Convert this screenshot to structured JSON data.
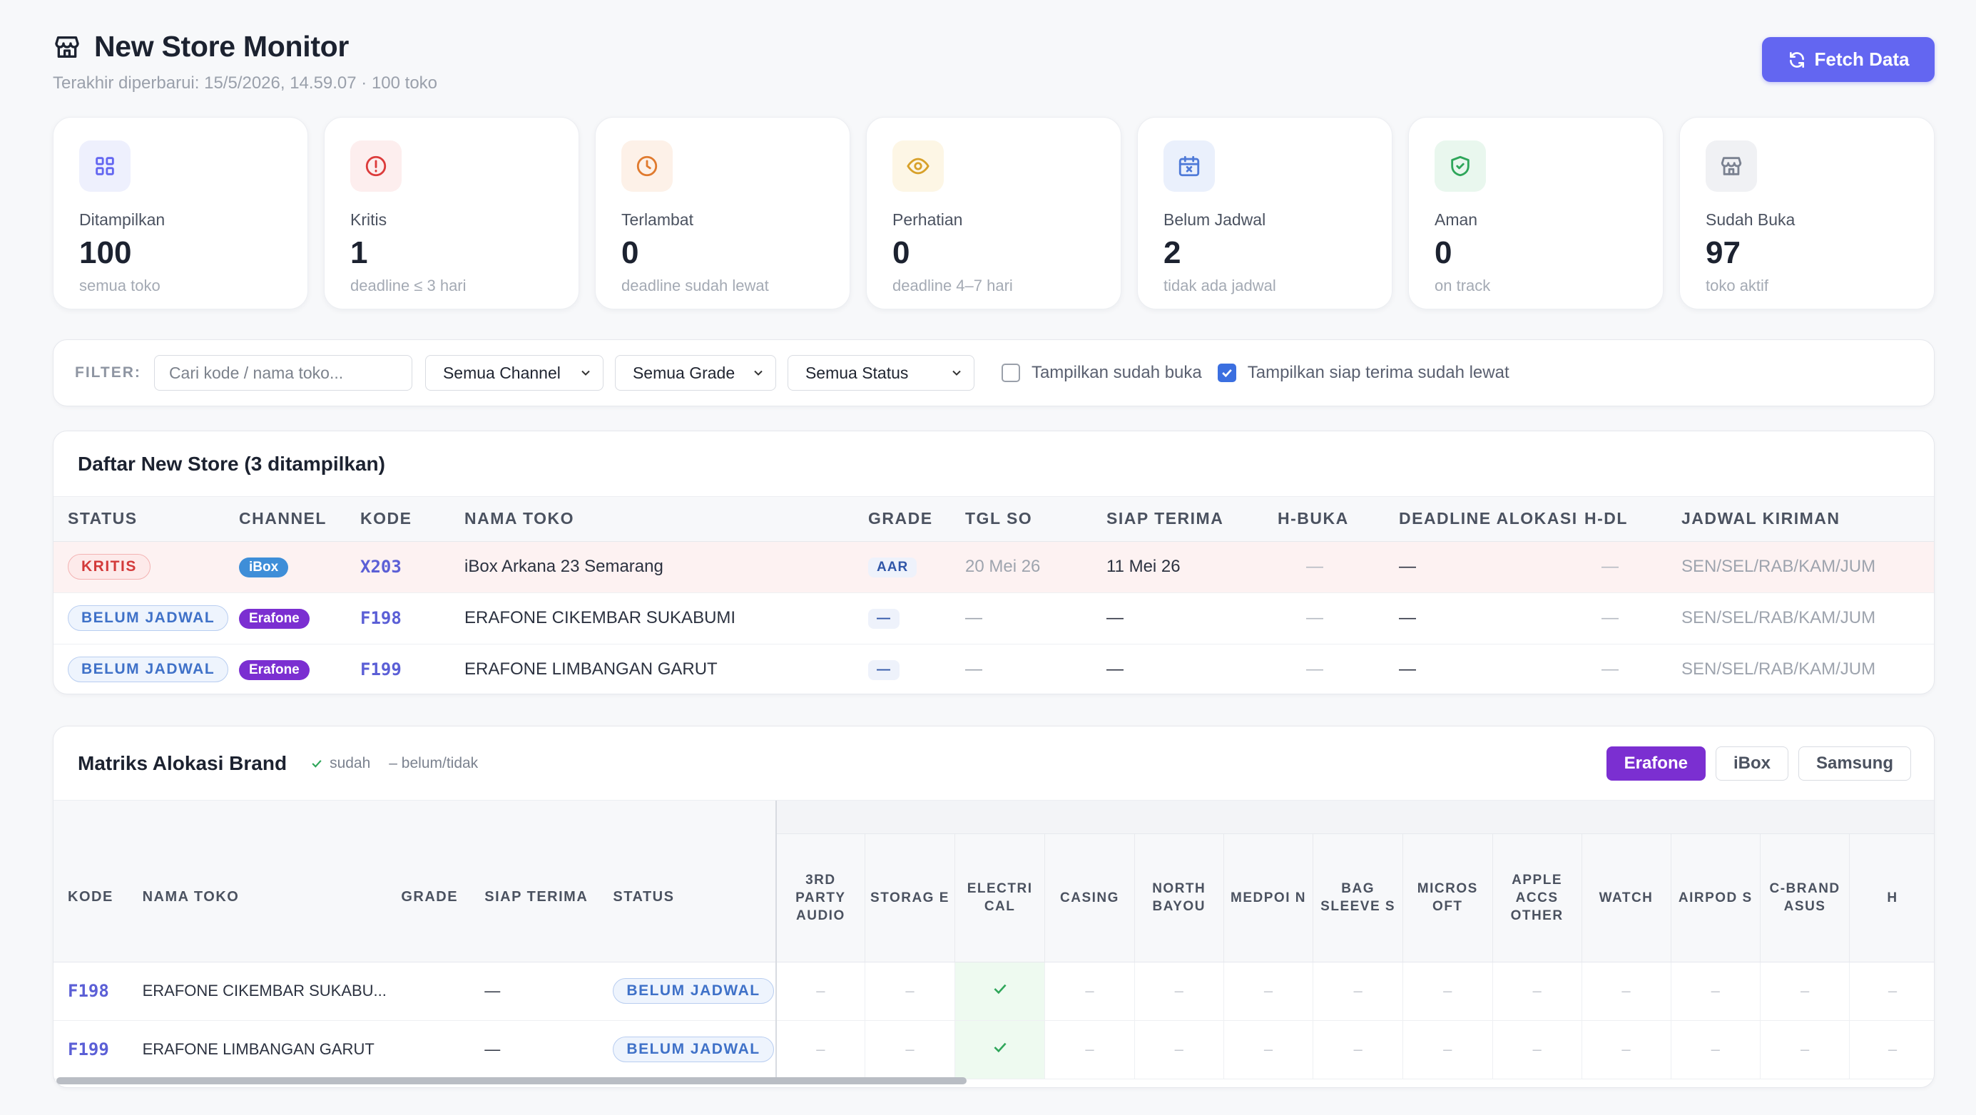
{
  "header": {
    "title": "New Store Monitor",
    "subtitle": "Terakhir diperbarui: 15/5/2026, 14.59.07 · 100 toko",
    "fetch_label": "Fetch Data"
  },
  "stats": [
    {
      "label": "Ditampilkan",
      "value": "100",
      "sub": "semua toko",
      "icon": "grid-icon",
      "color": "#6366f1",
      "bg": "#eef0fd"
    },
    {
      "label": "Kritis",
      "value": "1",
      "sub": "deadline ≤ 3 hari",
      "icon": "alert-circle-icon",
      "color": "#dc3b3b",
      "bg": "#fdeeee"
    },
    {
      "label": "Terlambat",
      "value": "0",
      "sub": "deadline sudah lewat",
      "icon": "clock-icon",
      "color": "#e07a2e",
      "bg": "#fdf1e8"
    },
    {
      "label": "Perhatian",
      "value": "0",
      "sub": "deadline 4–7 hari",
      "icon": "eye-icon",
      "color": "#d8a12a",
      "bg": "#fdf6e5"
    },
    {
      "label": "Belum Jadwal",
      "value": "2",
      "sub": "tidak ada jadwal",
      "icon": "calendar-x-icon",
      "color": "#4f7ad8",
      "bg": "#eaf0fc"
    },
    {
      "label": "Aman",
      "value": "0",
      "sub": "on track",
      "icon": "shield-check-icon",
      "color": "#2fa65a",
      "bg": "#e9f7ee"
    },
    {
      "label": "Sudah Buka",
      "value": "97",
      "sub": "toko aktif",
      "icon": "store-icon",
      "color": "#7a8190",
      "bg": "#f0f1f4"
    }
  ],
  "filter": {
    "label": "FILTER:",
    "search_placeholder": "Cari kode / nama toko...",
    "channel": "Semua Channel",
    "grade": "Semua Grade",
    "status": "Semua Status",
    "show_open_label": "Tampilkan sudah buka",
    "show_open_checked": false,
    "show_ready_label": "Tampilkan siap terima sudah lewat",
    "show_ready_checked": true
  },
  "list": {
    "title": "Daftar New Store (3 ditampilkan)",
    "columns": [
      "STATUS",
      "CHANNEL",
      "KODE",
      "NAMA TOKO",
      "GRADE",
      "TGL SO",
      "SIAP TERIMA",
      "H-BUKA",
      "DEADLINE ALOKASI",
      "H-DL",
      "JADWAL KIRIMAN"
    ],
    "rows": [
      {
        "status": "KRITIS",
        "status_type": "kritis",
        "channel": "iBox",
        "channel_type": "ibox",
        "kode": "X203",
        "nama": "iBox Arkana 23 Semarang",
        "grade": "AAR",
        "tgl_so": "20 Mei 26",
        "siap_terima": "11 Mei 26",
        "h_buka": "—",
        "deadline": "—",
        "h_dl": "—",
        "jadwal": "SEN/SEL/RAB/KAM/JUM"
      },
      {
        "status": "BELUM JADWAL",
        "status_type": "belum",
        "channel": "Erafone",
        "channel_type": "erafone",
        "kode": "F198",
        "nama": "ERAFONE CIKEMBAR SUKABUMI",
        "grade": "—",
        "tgl_so": "—",
        "siap_terima": "—",
        "h_buka": "—",
        "deadline": "—",
        "h_dl": "—",
        "jadwal": "SEN/SEL/RAB/KAM/JUM"
      },
      {
        "status": "BELUM JADWAL",
        "status_type": "belum",
        "channel": "Erafone",
        "channel_type": "erafone",
        "kode": "F199",
        "nama": "ERAFONE LIMBANGAN GARUT",
        "grade": "—",
        "tgl_so": "—",
        "siap_terima": "—",
        "h_buka": "—",
        "deadline": "—",
        "h_dl": "—",
        "jadwal": "SEN/SEL/RAB/KAM/JUM"
      }
    ]
  },
  "matrix": {
    "title": "Matriks Alokasi Brand",
    "legend_done": "sudah",
    "legend_not": "– belum/tidak",
    "tabs": [
      "Erafone",
      "iBox",
      "Samsung"
    ],
    "active_tab": "Erafone",
    "fixed_columns": [
      "KODE",
      "NAMA TOKO",
      "GRADE",
      "SIAP TERIMA",
      "STATUS"
    ],
    "brand_columns": [
      "3RD PARTY AUDIO",
      "STORAG E",
      "ELECTRI CAL",
      "CASING",
      "NORTH BAYOU",
      "MEDPOI N",
      "BAG SLEEVE S",
      "MICROS OFT",
      "APPLE ACCS OTHER",
      "WATCH",
      "AIRPOD S",
      "C-BRAND ASUS",
      "H"
    ],
    "rows": [
      {
        "kode": "F198",
        "nama": "ERAFONE CIKEMBAR SUKABU...",
        "grade": "",
        "siap_terima": "—",
        "status": "BELUM JADWAL",
        "cells": [
          false,
          false,
          true,
          false,
          false,
          false,
          false,
          false,
          false,
          false,
          false,
          false,
          false
        ]
      },
      {
        "kode": "F199",
        "nama": "ERAFONE LIMBANGAN GARUT",
        "grade": "",
        "siap_terima": "—",
        "status": "BELUM JADWAL",
        "cells": [
          false,
          false,
          true,
          false,
          false,
          false,
          false,
          false,
          false,
          false,
          false,
          false,
          false
        ]
      }
    ],
    "empty_mark": "–"
  }
}
